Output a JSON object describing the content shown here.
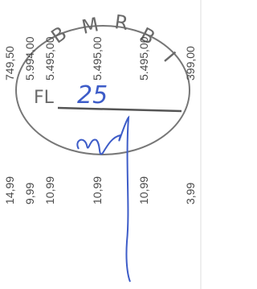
{
  "columns": [
    {
      "amount": "749,50",
      "price": "14,99"
    },
    {
      "amount": "5.994,00",
      "price": "9,99"
    },
    {
      "amount": "5.495,00",
      "price": "10,99"
    },
    {
      "amount": "5.495,00",
      "price": "10,99"
    },
    {
      "amount": "5.495,00",
      "price": "10,99"
    },
    {
      "amount": "399,00",
      "price": "3,99"
    }
  ],
  "stamp": {
    "letters": [
      "B",
      "M",
      "R",
      "B",
      "I"
    ],
    "label": "FL",
    "number": "25"
  }
}
